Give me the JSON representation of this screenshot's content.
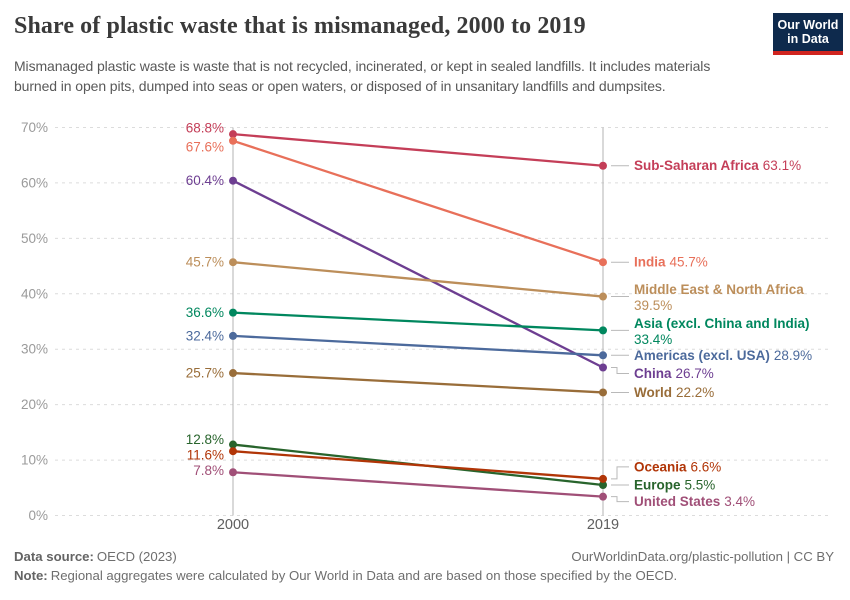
{
  "header": {
    "title": "Share of plastic waste that is mismanaged, 2000 to 2019",
    "subtitle": "Mismanaged plastic waste is waste that is not recycled, incinerated, or kept in sealed landfills. It includes materials burned in open pits, dumped into seas or open waters, or disposed of in unsanitary landfills and dumpsites.",
    "logo": {
      "line1": "Our World",
      "line2": "in Data",
      "bg_color": "#0e2a4d",
      "bar_color": "#d0241f"
    }
  },
  "chart_data": {
    "type": "line",
    "subtype": "slope",
    "title": "Share of plastic waste that is mismanaged, 2000 to 2019",
    "x": [
      2000,
      2019
    ],
    "x_labels": [
      "2000",
      "2019"
    ],
    "ylim": [
      0,
      70
    ],
    "yticks": [
      {
        "value": 0,
        "label": "0%"
      },
      {
        "value": 10,
        "label": "10%"
      },
      {
        "value": 20,
        "label": "20%"
      },
      {
        "value": 30,
        "label": "30%"
      },
      {
        "value": 40,
        "label": "40%"
      },
      {
        "value": 50,
        "label": "50%"
      },
      {
        "value": 60,
        "label": "60%"
      },
      {
        "value": 70,
        "label": "70%"
      }
    ],
    "grid": "dashed",
    "legend_position": "labels-beside-points",
    "series": [
      {
        "name": "Sub-Saharan Africa",
        "color": "#c43e58",
        "values": [
          68.8,
          63.1
        ],
        "start_label": "68.8%",
        "end_value_label": "63.1%",
        "start_dy": -6,
        "end_dy": 0,
        "two_line": false
      },
      {
        "name": "India",
        "color": "#e8705a",
        "values": [
          67.6,
          45.7
        ],
        "start_label": "67.6%",
        "end_value_label": "45.7%",
        "start_dy": 6,
        "end_dy": 0,
        "two_line": false
      },
      {
        "name": "China",
        "color": "#6d3e91",
        "values": [
          60.4,
          26.7
        ],
        "start_label": "60.4%",
        "end_value_label": "26.7%",
        "start_dy": 0,
        "end_dy": 6,
        "two_line": false
      },
      {
        "name": "Middle East & North Africa",
        "color": "#bc8e5a",
        "values": [
          45.7,
          39.5
        ],
        "start_label": "45.7%",
        "end_value_label": "39.5%",
        "start_dy": 0,
        "end_dy": 1,
        "two_line": true
      },
      {
        "name": "Asia (excl. China and India)",
        "color": "#00875e",
        "values": [
          36.6,
          33.4
        ],
        "start_label": "36.6%",
        "end_value_label": "33.4%",
        "start_dy": 0,
        "end_dy": 1,
        "two_line": true
      },
      {
        "name": "Americas (excl. USA)",
        "color": "#4c6a9c",
        "values": [
          32.4,
          28.9
        ],
        "start_label": "32.4%",
        "end_value_label": "28.9%",
        "start_dy": 0,
        "end_dy": 0,
        "two_line": false
      },
      {
        "name": "World",
        "color": "#996d39",
        "values": [
          25.7,
          22.2
        ],
        "start_label": "25.7%",
        "end_value_label": "22.2%",
        "start_dy": 0,
        "end_dy": 0,
        "two_line": false
      },
      {
        "name": "Europe",
        "color": "#28642c",
        "values": [
          12.8,
          5.5
        ],
        "start_label": "12.8%",
        "end_value_label": "5.5%",
        "start_dy": -5,
        "end_dy": 0,
        "two_line": false
      },
      {
        "name": "Oceania",
        "color": "#b13507",
        "values": [
          11.6,
          6.6
        ],
        "start_label": "11.6%",
        "end_value_label": "6.6%",
        "start_dy": 4,
        "end_dy": -12,
        "two_line": false
      },
      {
        "name": "United States",
        "color": "#a04f77",
        "values": [
          7.8,
          3.4
        ],
        "start_label": "7.8%",
        "end_value_label": "3.4%",
        "start_dy": -2,
        "end_dy": 5,
        "two_line": false
      }
    ]
  },
  "footer": {
    "source_label": "Data source:",
    "source_value": "OECD (2023)",
    "citation": "OurWorldinData.org/plastic-pollution | CC BY",
    "note_label": "Note:",
    "note_value": "Regional aggregates were calculated by Our World in Data and are based on those specified by the OECD."
  }
}
